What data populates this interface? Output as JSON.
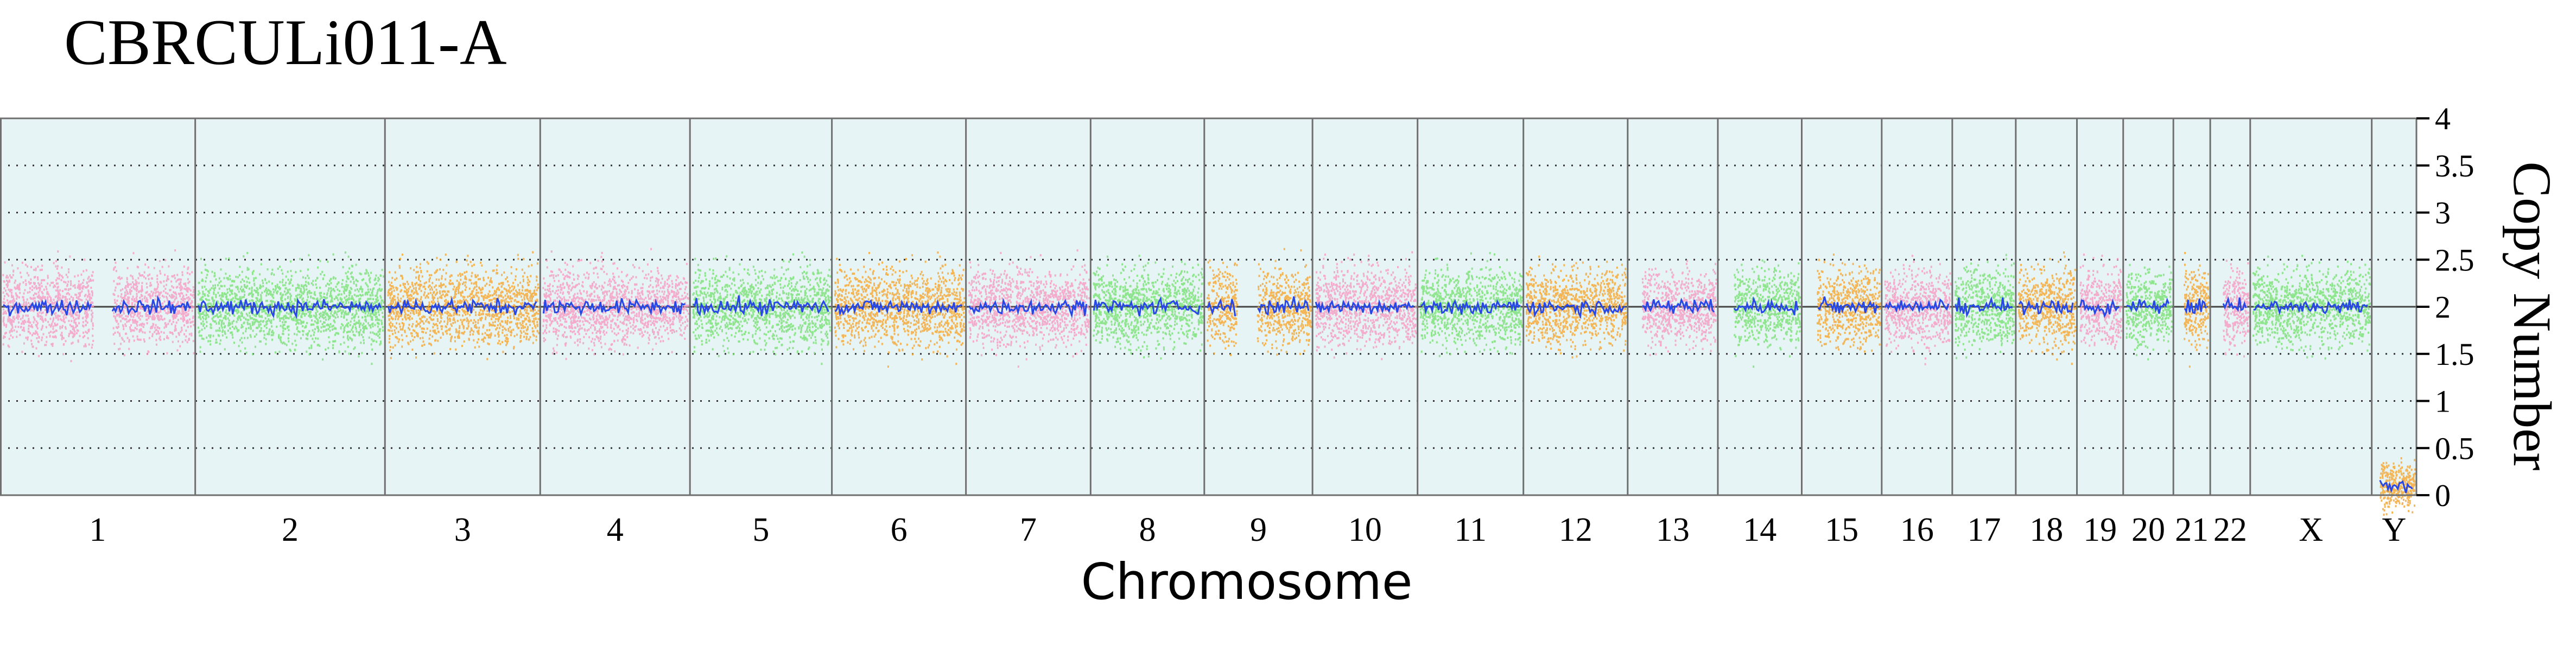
{
  "chart_data": {
    "type": "scatter",
    "title": "CBRCULi011-A",
    "xlabel": "Chromosome",
    "ylabel": "Copy Number",
    "ylim": [
      0,
      4
    ],
    "yticks": [
      {
        "value": 4,
        "label": "4"
      },
      {
        "value": 3.5,
        "label": "3.5"
      },
      {
        "value": 3,
        "label": "3"
      },
      {
        "value": 2.5,
        "label": "2.5"
      },
      {
        "value": 2,
        "label": "2"
      },
      {
        "value": 1.5,
        "label": "1.5"
      },
      {
        "value": 1,
        "label": "1"
      },
      {
        "value": 0.5,
        "label": "0.5"
      },
      {
        "value": 0,
        "label": "0"
      }
    ],
    "grid": {
      "dotted_levels": [
        0.5,
        1,
        1.5,
        2.5,
        3,
        3.5
      ],
      "reference_line": 2
    },
    "colors": {
      "pink": "#f59fc4",
      "green": "#7ee27a",
      "orange": "#f5a93a",
      "blue": "#2747e6",
      "background": "#e6f4f5",
      "border": "#6f6f6f"
    },
    "chromosomes": [
      {
        "label": "1",
        "start": 0,
        "end": 249,
        "cn": 2.0,
        "color": "pink",
        "gap": [
          118,
          143
        ]
      },
      {
        "label": "2",
        "start": 249,
        "end": 491,
        "cn": 2.0,
        "color": "green"
      },
      {
        "label": "3",
        "start": 491,
        "end": 689,
        "cn": 2.0,
        "color": "orange"
      },
      {
        "label": "4",
        "start": 689,
        "end": 880,
        "cn": 2.0,
        "color": "pink"
      },
      {
        "label": "5",
        "start": 880,
        "end": 1061,
        "cn": 2.0,
        "color": "green"
      },
      {
        "label": "6",
        "start": 1061,
        "end": 1232,
        "cn": 2.0,
        "color": "orange"
      },
      {
        "label": "7",
        "start": 1232,
        "end": 1391,
        "cn": 2.0,
        "color": "pink"
      },
      {
        "label": "8",
        "start": 1391,
        "end": 1536,
        "cn": 2.0,
        "color": "green"
      },
      {
        "label": "9",
        "start": 1536,
        "end": 1674,
        "cn": 2.0,
        "color": "orange",
        "gap": [
          41,
          67
        ]
      },
      {
        "label": "10",
        "start": 1674,
        "end": 1808,
        "cn": 2.0,
        "color": "pink"
      },
      {
        "label": "11",
        "start": 1808,
        "end": 1943,
        "cn": 2.0,
        "color": "green"
      },
      {
        "label": "12",
        "start": 1943,
        "end": 2076,
        "cn": 2.0,
        "color": "orange"
      },
      {
        "label": "13",
        "start": 2076,
        "end": 2191,
        "cn": 2.0,
        "color": "pink",
        "gap": [
          0,
          18
        ]
      },
      {
        "label": "14",
        "start": 2191,
        "end": 2298,
        "cn": 2.0,
        "color": "green",
        "gap": [
          0,
          20
        ]
      },
      {
        "label": "15",
        "start": 2298,
        "end": 2400,
        "cn": 2.0,
        "color": "orange",
        "gap": [
          0,
          19
        ]
      },
      {
        "label": "16",
        "start": 2400,
        "end": 2490,
        "cn": 2.0,
        "color": "pink"
      },
      {
        "label": "17",
        "start": 2490,
        "end": 2571,
        "cn": 2.0,
        "color": "green"
      },
      {
        "label": "18",
        "start": 2571,
        "end": 2649,
        "cn": 2.0,
        "color": "orange"
      },
      {
        "label": "19",
        "start": 2649,
        "end": 2708,
        "cn": 2.0,
        "color": "pink"
      },
      {
        "label": "20",
        "start": 2708,
        "end": 2772,
        "cn": 2.0,
        "color": "green"
      },
      {
        "label": "21",
        "start": 2772,
        "end": 2819,
        "cn": 2.0,
        "color": "orange",
        "gap": [
          0,
          13
        ]
      },
      {
        "label": "22",
        "start": 2819,
        "end": 2870,
        "cn": 2.0,
        "color": "pink",
        "gap": [
          0,
          16
        ]
      },
      {
        "label": "X",
        "start": 2870,
        "end": 3025,
        "cn": 2.0,
        "color": "green"
      },
      {
        "label": "Y",
        "start": 3025,
        "end": 3082,
        "cn": 0.1,
        "color": "orange",
        "gap": [
          2,
          10
        ]
      }
    ]
  }
}
